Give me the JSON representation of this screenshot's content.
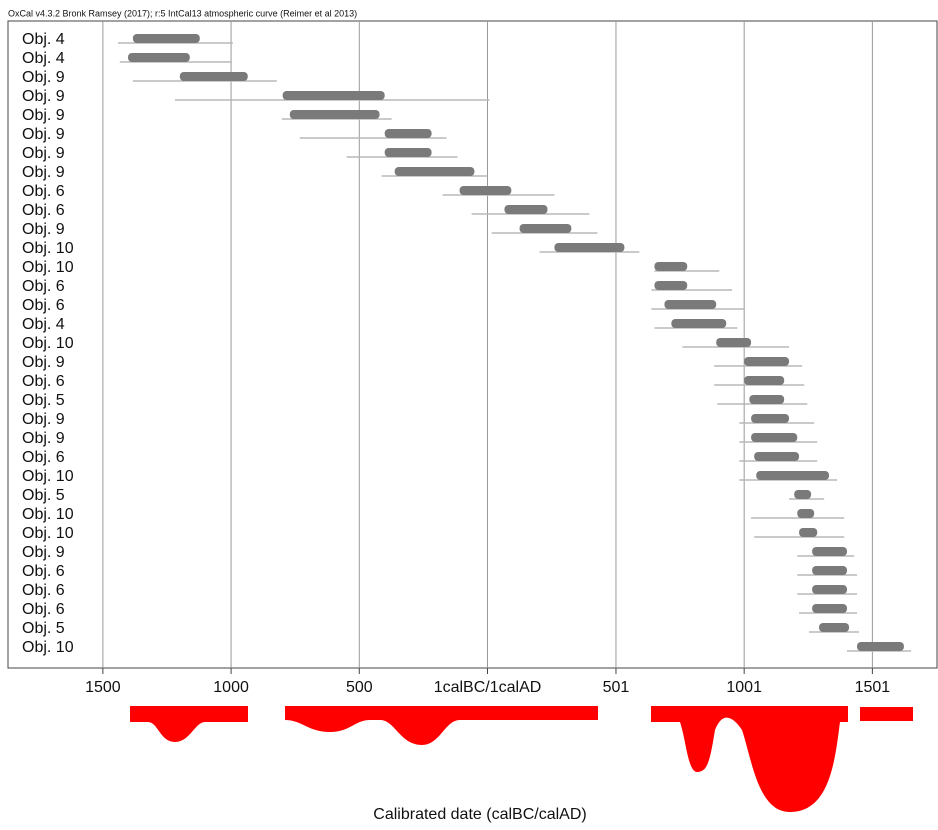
{
  "chart_data": {
    "type": "range",
    "title": "OxCal v4.3.2 Bronk Ramsey (2017); r:5 IntCal13 atmospheric curve (Reimer et al 2013)",
    "x_label": "Calibrated date (calBC/calAD)",
    "categories": [
      "Obj. 4",
      "Obj. 4",
      "Obj. 9",
      "Obj. 9",
      "Obj. 9",
      "Obj. 9",
      "Obj. 9",
      "Obj. 9",
      "Obj. 6",
      "Obj. 6",
      "Obj. 9",
      "Obj. 10",
      "Obj. 10",
      "Obj. 6",
      "Obj. 6",
      "Obj. 4",
      "Obj. 10",
      "Obj. 9",
      "Obj. 6",
      "Obj. 5",
      "Obj. 9",
      "Obj. 9",
      "Obj. 6",
      "Obj. 10",
      "Obj. 5",
      "Obj. 10",
      "Obj. 10",
      "Obj. 9",
      "Obj. 6",
      "Obj. 6",
      "Obj. 6",
      "Obj. 5",
      "Obj. 10"
    ],
    "low": [
      -1441,
      -1434,
      -1383,
      -1219,
      -802,
      -732,
      -549,
      -413,
      -175,
      -62,
      16,
      203,
      651,
      639,
      639,
      651,
      760,
      884,
      884,
      896,
      982,
      982,
      982,
      982,
      1176,
      1028,
      1040,
      1208,
      1208,
      1208,
      1215,
      1254,
      1402
    ],
    "high": [
      -993,
      -997,
      -822,
      8,
      -374,
      -160,
      -117,
      0,
      261,
      397,
      429,
      592,
      904,
      954,
      1001,
      974,
      1176,
      1227,
      1235,
      1247,
      1274,
      1286,
      1286,
      1363,
      1313,
      1391,
      1391,
      1430,
      1441,
      1441,
      1441,
      1449,
      1652
    ],
    "peak_low": [
      -1383,
      -1402,
      -1200,
      -799,
      -771,
      -401,
      -401,
      -362,
      -109,
      66,
      125,
      261,
      651,
      651,
      690,
      717,
      892,
      1001,
      1001,
      1021,
      1028,
      1028,
      1040,
      1048,
      1196,
      1208,
      1215,
      1266,
      1266,
      1266,
      1266,
      1293,
      1441
    ],
    "peak_high": [
      -1122,
      -1161,
      -935,
      -401,
      -421,
      -218,
      -218,
      -51,
      93,
      234,
      327,
      534,
      779,
      779,
      892,
      931,
      1028,
      1176,
      1157,
      1157,
      1176,
      1208,
      1215,
      1332,
      1262,
      1274,
      1286,
      1402,
      1402,
      1402,
      1402,
      1410,
      1624
    ],
    "color": "#7a7a7a",
    "range_color": "#b8b8b8",
    "xlim": [
      -1870,
      1753
    ],
    "xticks": [
      {
        "value": -1500,
        "label": "1500"
      },
      {
        "value": -1000,
        "label": "1000"
      },
      {
        "value": -500,
        "label": "500"
      },
      {
        "value": 0,
        "label": "1calBC/1calAD"
      },
      501,
      1001,
      1501
    ],
    "grid": true
  }
}
